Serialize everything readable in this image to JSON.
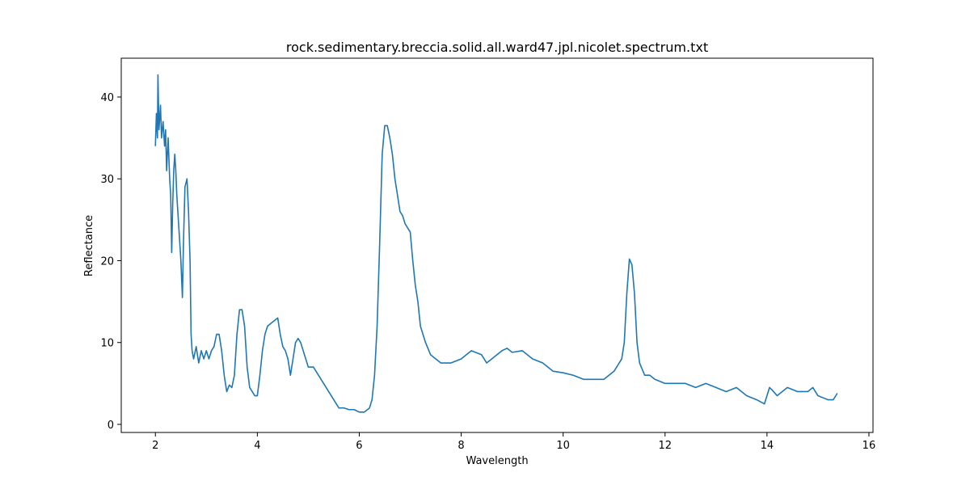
{
  "chart_data": {
    "type": "line",
    "title": "rock.sedimentary.breccia.solid.all.ward47.jpl.nicolet.spectrum.txt",
    "x_label": "Wavelength",
    "y_label": "Reflectance",
    "xlim": [
      1.33,
      16.08
    ],
    "ylim": [
      -0.99,
      44.74
    ],
    "xticks": [
      2,
      4,
      6,
      8,
      10,
      12,
      14,
      16
    ],
    "yticks": [
      0,
      10,
      20,
      30,
      40
    ],
    "grid": false,
    "x": [
      2.0,
      2.02,
      2.04,
      2.05,
      2.07,
      2.1,
      2.12,
      2.15,
      2.18,
      2.2,
      2.22,
      2.25,
      2.28,
      2.3,
      2.32,
      2.34,
      2.36,
      2.38,
      2.4,
      2.42,
      2.45,
      2.5,
      2.53,
      2.55,
      2.58,
      2.62,
      2.65,
      2.68,
      2.7,
      2.72,
      2.75,
      2.8,
      2.85,
      2.9,
      2.95,
      3.0,
      3.05,
      3.1,
      3.15,
      3.2,
      3.25,
      3.3,
      3.35,
      3.4,
      3.45,
      3.5,
      3.55,
      3.6,
      3.65,
      3.7,
      3.75,
      3.8,
      3.85,
      3.9,
      3.95,
      4.0,
      4.05,
      4.1,
      4.15,
      4.2,
      4.3,
      4.4,
      4.45,
      4.5,
      4.55,
      4.6,
      4.65,
      4.7,
      4.75,
      4.8,
      4.85,
      4.9,
      4.95,
      5.0,
      5.1,
      5.2,
      5.3,
      5.4,
      5.5,
      5.6,
      5.7,
      5.8,
      5.9,
      6.0,
      6.1,
      6.2,
      6.25,
      6.3,
      6.35,
      6.4,
      6.45,
      6.5,
      6.55,
      6.6,
      6.65,
      6.7,
      6.75,
      6.8,
      6.85,
      6.9,
      7.0,
      7.05,
      7.1,
      7.15,
      7.2,
      7.3,
      7.4,
      7.5,
      7.6,
      7.8,
      8.0,
      8.2,
      8.4,
      8.5,
      8.6,
      8.8,
      8.9,
      9.0,
      9.2,
      9.4,
      9.6,
      9.8,
      10.0,
      10.2,
      10.4,
      10.6,
      10.8,
      11.0,
      11.1,
      11.15,
      11.2,
      11.25,
      11.3,
      11.35,
      11.4,
      11.45,
      11.5,
      11.6,
      11.7,
      11.8,
      12.0,
      12.2,
      12.4,
      12.6,
      12.8,
      13.0,
      13.2,
      13.4,
      13.6,
      13.8,
      13.95,
      14.0,
      14.05,
      14.1,
      14.2,
      14.4,
      14.6,
      14.8,
      14.9,
      15.0,
      15.2,
      15.3,
      15.38
    ],
    "series": [
      {
        "name": "Reflectance",
        "color": "#1f77b4",
        "values": [
          34,
          38,
          35,
          42.7,
          36,
          39,
          35,
          37,
          34,
          36,
          31,
          35,
          30,
          28,
          21,
          27,
          31,
          33,
          31,
          28,
          25,
          20,
          15.5,
          22,
          29,
          30,
          26,
          20,
          11,
          9,
          8,
          9.5,
          7.5,
          9,
          8,
          9,
          8,
          9,
          9.5,
          11,
          11,
          9,
          6,
          4,
          4.8,
          4.5,
          6,
          11,
          14,
          14,
          12,
          7,
          4.5,
          4,
          3.5,
          3.5,
          6,
          9,
          11,
          12,
          12.5,
          13,
          11,
          9.5,
          9,
          8,
          6,
          8,
          10,
          10.5,
          10,
          9,
          8,
          7,
          7,
          6,
          5,
          4,
          3,
          2,
          2,
          1.8,
          1.8,
          1.5,
          1.5,
          2,
          3,
          6,
          12,
          22,
          33,
          36.5,
          36.5,
          35,
          33,
          30,
          28,
          26,
          25.5,
          24.5,
          23.5,
          20,
          17,
          15,
          12,
          10,
          8.5,
          8,
          7.5,
          7.5,
          8,
          9,
          8.5,
          7.5,
          8,
          9,
          9.3,
          8.8,
          9,
          8,
          7.5,
          6.5,
          6.3,
          6,
          5.5,
          5.5,
          5.5,
          6.5,
          7.5,
          8,
          10,
          16,
          20.2,
          19.5,
          16,
          10,
          7.5,
          6,
          6,
          5.5,
          5,
          5,
          5,
          4.5,
          5,
          4.5,
          4,
          4.5,
          3.5,
          3,
          2.5,
          3.5,
          4.5,
          4.2,
          3.5,
          4.5,
          4,
          4,
          4.5,
          3.5,
          3,
          3,
          3.8
        ]
      }
    ]
  }
}
